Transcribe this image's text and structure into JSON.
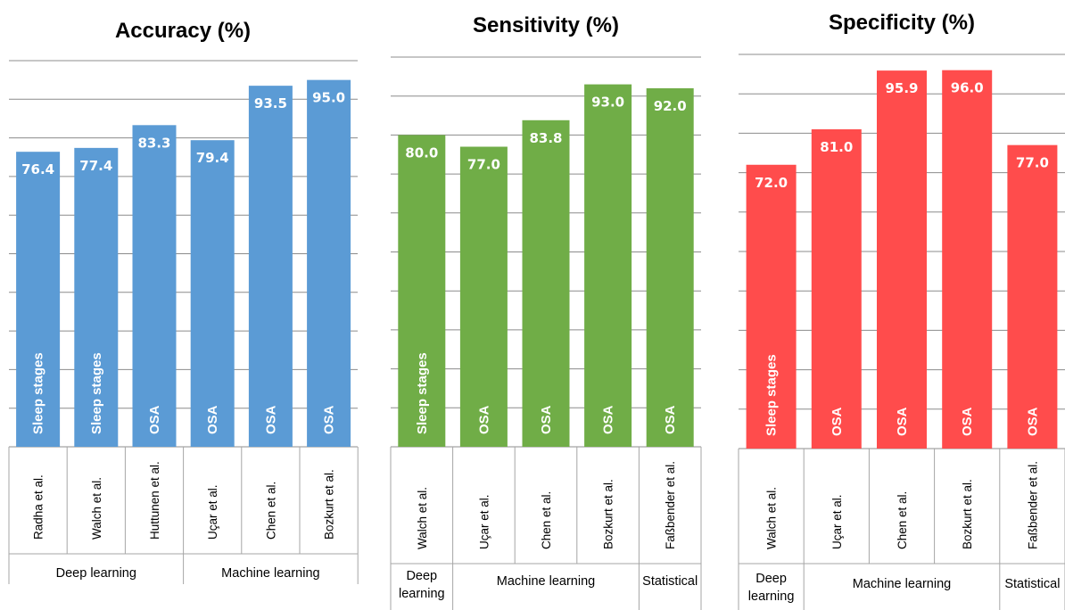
{
  "chart_data": [
    {
      "type": "bar",
      "title": "Accuracy (%)",
      "color": "#5b9bd5",
      "categories": [
        "Radha et al.",
        "Walch et al.",
        "Huttunen et al.",
        "Uçar et al.",
        "Chen et al.",
        "Bozkurt et al."
      ],
      "values": [
        76.4,
        77.4,
        83.3,
        79.4,
        93.5,
        95.0
      ],
      "value_labels": [
        "76.4",
        "77.4",
        "83.3",
        "79.4",
        "93.5",
        "95.0"
      ],
      "bar_text": [
        "Sleep stages",
        "Sleep stages",
        "OSA",
        "OSA",
        "OSA",
        "OSA"
      ],
      "groups": [
        {
          "label": "Deep learning",
          "count": 3
        },
        {
          "label": "Machine learning",
          "count": 3
        }
      ]
    },
    {
      "type": "bar",
      "title": "Sensitivity (%)",
      "color": "#70ad47",
      "categories": [
        "Walch et al.",
        "Uçar et al.",
        "Chen et al.",
        "Bozkurt et al.",
        "Faßbender et al."
      ],
      "values": [
        80.0,
        77.0,
        83.8,
        93.0,
        92.0
      ],
      "value_labels": [
        "80.0",
        "77.0",
        "83.8",
        "93.0",
        "92.0"
      ],
      "bar_text": [
        "Sleep stages",
        "OSA",
        "OSA",
        "OSA",
        "OSA"
      ],
      "groups": [
        {
          "label": "Deep learning",
          "count": 1
        },
        {
          "label": "Machine learning",
          "count": 3
        },
        {
          "label": "Statistical",
          "count": 1
        }
      ]
    },
    {
      "type": "bar",
      "title": "Specificity (%)",
      "color": "#ff4c4c",
      "categories": [
        "Walch et al.",
        "Uçar et al.",
        "Chen et al.",
        "Bozkurt et al.",
        "Faßbender et al."
      ],
      "values": [
        72.0,
        81.0,
        95.9,
        96.0,
        77.0
      ],
      "value_labels": [
        "72.0",
        "81.0",
        "95.9",
        "96.0",
        "77.0"
      ],
      "bar_text": [
        "Sleep stages",
        "OSA",
        "OSA",
        "OSA",
        "OSA"
      ],
      "groups": [
        {
          "label": "Deep learning",
          "count": 1
        },
        {
          "label": "Machine learning",
          "count": 3
        },
        {
          "label": "Statistical",
          "count": 1
        }
      ]
    }
  ]
}
